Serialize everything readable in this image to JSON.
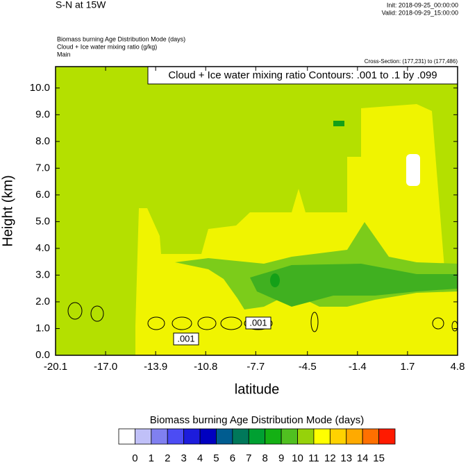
{
  "chart_data": {
    "type": "contour",
    "title": "S-N at 15W",
    "init": "Init: 2018-09-25_00:00:00",
    "valid": "Valid: 2018-09-29_15:00:00",
    "subtitles": [
      "Biomass burning Age Distribution Mode   (days)",
      "Cloud + Ice water mixing ratio   (g/kg)",
      "Main"
    ],
    "cross_section": "Cross-Section: (177,231) to (177,486)",
    "contour_title": "Cloud + Ice water mixing ratio Contours: .001 to .1 by .099",
    "x_label": "latitude",
    "y_label": "Height (km)",
    "xlim": [
      -20.1,
      4.8
    ],
    "ylim": [
      0,
      10.8
    ],
    "xticks": [
      -20.1,
      {
        "value": -17.0,
        "label": "-17.0"
      },
      -13.9,
      -10.8,
      -7.7,
      -4.5,
      -1.4,
      1.7,
      4.8
    ],
    "yticks": [
      {
        "value": 0,
        "label": "0.0"
      },
      {
        "value": 1,
        "label": "1.0"
      },
      {
        "value": 2,
        "label": "2.0"
      },
      {
        "value": 3,
        "label": "3.0"
      },
      {
        "value": 4,
        "label": "4.0"
      },
      {
        "value": 5,
        "label": "5.0"
      },
      {
        "value": 6,
        "label": "6.0"
      },
      {
        "value": 7,
        "label": "7.0"
      },
      {
        "value": 8,
        "label": "8.0"
      },
      {
        "value": 9,
        "label": "9.0"
      },
      {
        "value": 10,
        "label": "10.0"
      }
    ],
    "contour_labels": [
      ".001",
      ".001"
    ],
    "colorbar": {
      "title": "Biomass burning Age Distribution Mode  (days)",
      "levels": [
        0,
        1,
        2,
        3,
        4,
        5,
        6,
        7,
        8,
        9,
        10,
        11,
        12,
        13,
        14,
        15
      ],
      "colors": [
        "#ffffff",
        "#c0c0f8",
        "#8080f0",
        "#4c4cf4",
        "#1c1cdc",
        "#0000c0",
        "#005c90",
        "#00785a",
        "#00a032",
        "#14b014",
        "#50c020",
        "#96d20a",
        "#ffff00",
        "#ffd200",
        "#ffaa00",
        "#ff7000",
        "#ff1a00"
      ]
    }
  }
}
